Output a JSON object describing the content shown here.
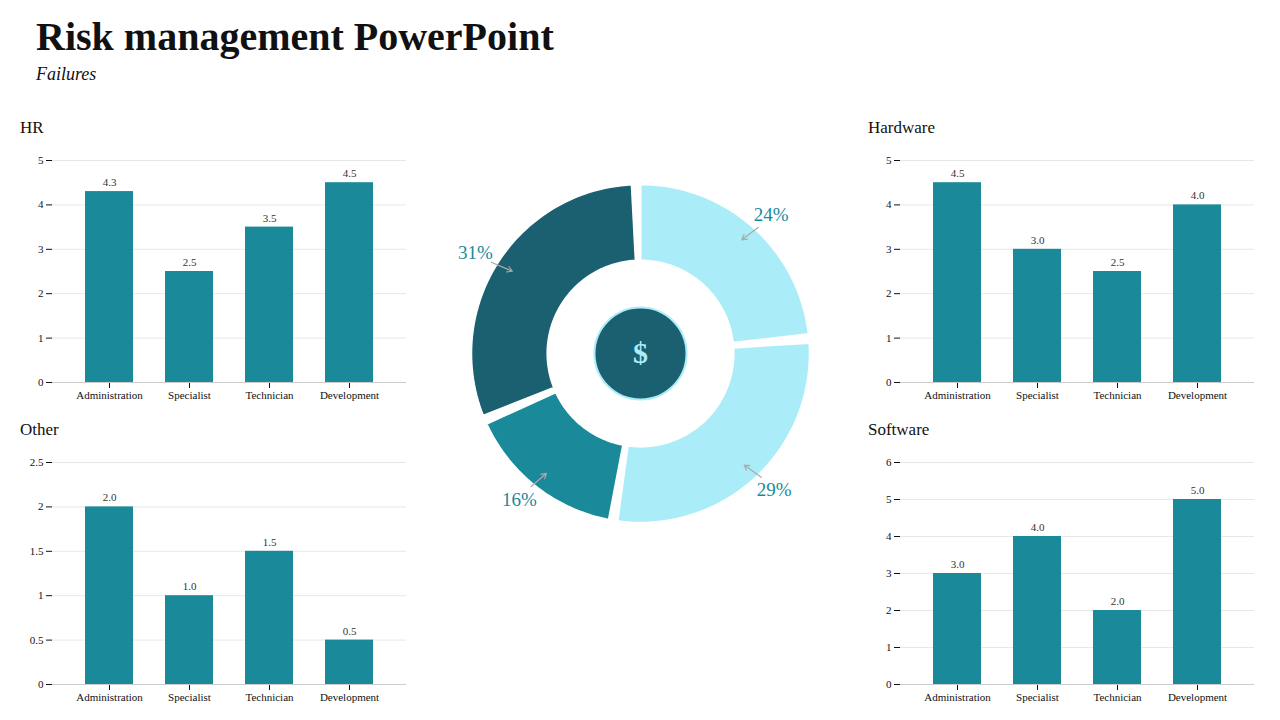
{
  "chart_data": [
    {
      "type": "bar",
      "title": "HR",
      "categories": [
        "Administration",
        "Specialist",
        "Technician",
        "Development"
      ],
      "values": [
        4.3,
        2.5,
        3.5,
        4.5
      ],
      "color": "#1a8a9a",
      "ylim": [
        0,
        5
      ],
      "yticks": [
        0,
        1,
        2,
        3,
        4,
        5
      ],
      "grid": true,
      "data_labels": true
    },
    {
      "type": "bar",
      "title": "Hardware",
      "categories": [
        "Administration",
        "Specialist",
        "Technician",
        "Development"
      ],
      "values": [
        4.5,
        3.0,
        2.5,
        4.0
      ],
      "value_labels": [
        "4.5",
        "3.0",
        "2.5",
        "4.0"
      ],
      "color": "#1a8a9a",
      "ylim": [
        0,
        5
      ],
      "yticks": [
        0,
        1,
        2,
        3,
        4,
        5
      ],
      "grid": true,
      "data_labels": true
    },
    {
      "type": "bar",
      "title": "Other",
      "categories": [
        "Administration",
        "Specialist",
        "Technician",
        "Development"
      ],
      "values": [
        2.0,
        1.0,
        1.5,
        0.5
      ],
      "value_labels": [
        "2.0",
        "1.0",
        "1.5",
        "0.5"
      ],
      "color": "#1a8a9a",
      "ylim": [
        0,
        2.5
      ],
      "yticks": [
        0,
        0.5,
        1,
        1.5,
        2,
        2.5
      ],
      "grid": true,
      "data_labels": true
    },
    {
      "type": "bar",
      "title": "Software",
      "categories": [
        "Administration",
        "Specialist",
        "Technician",
        "Development"
      ],
      "values": [
        3.0,
        4.0,
        2.0,
        5.0
      ],
      "value_labels": [
        "3.0",
        "4.0",
        "2.0",
        "5.0"
      ],
      "color": "#1a8a9a",
      "ylim": [
        0,
        6
      ],
      "yticks": [
        0,
        1,
        2,
        3,
        4,
        5,
        6
      ],
      "grid": true,
      "data_labels": true
    },
    {
      "type": "pie",
      "title": "Risk management PowerPoint",
      "subtitle": "Failures",
      "values": [
        24,
        29,
        16,
        31
      ],
      "value_labels": [
        "24%",
        "29%",
        "16%",
        "31%"
      ],
      "colors": [
        "#aaecf8",
        "#aaecf8",
        "#1a8a9a",
        "#1a6070"
      ],
      "data_labels": true,
      "annotations": [
        {
          "text": "$"
        }
      ]
    }
  ]
}
